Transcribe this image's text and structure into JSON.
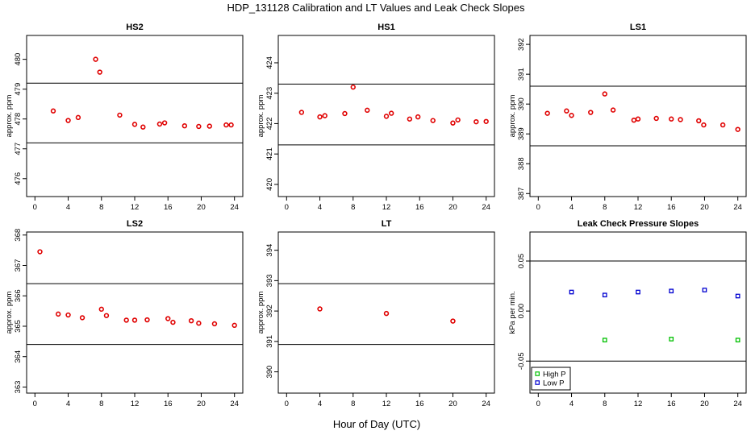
{
  "figure": {
    "title": "HDP_131128  Calibration and LT Values and Leak Check Slopes",
    "xlabel": "Hour of Day (UTC)"
  },
  "colors": {
    "red": "#e00000",
    "green": "#00c000",
    "blue": "#0000d0",
    "axis": "#000000"
  },
  "chart_data": [
    {
      "type": "scatter",
      "title": "HS2",
      "ylabel": "approx. ppm",
      "xlim": [
        -1,
        25
      ],
      "ylim": [
        475.4,
        480.8
      ],
      "xticks": [
        0,
        4,
        8,
        12,
        16,
        20,
        24
      ],
      "yticks": [
        476,
        477,
        478,
        479,
        480
      ],
      "hlines": [
        477.2,
        479.2
      ],
      "series": [
        {
          "color": "red",
          "marker": "o",
          "x": [
            2.2,
            4.0,
            5.2,
            7.3,
            7.8,
            10.2,
            12.0,
            13.0,
            15.0,
            15.6,
            18.0,
            19.7,
            21.0,
            23.0,
            23.6
          ],
          "y": [
            478.27,
            477.95,
            478.05,
            480.0,
            479.57,
            478.13,
            477.82,
            477.73,
            477.83,
            477.87,
            477.77,
            477.75,
            477.76,
            477.8,
            477.8
          ]
        }
      ]
    },
    {
      "type": "scatter",
      "title": "HS1",
      "ylabel": "approx. ppm",
      "xlim": [
        -1,
        25
      ],
      "ylim": [
        419.6,
        424.9
      ],
      "xticks": [
        0,
        4,
        8,
        12,
        16,
        20,
        24
      ],
      "yticks": [
        420,
        421,
        422,
        423,
        424
      ],
      "hlines": [
        421.3,
        423.3
      ],
      "series": [
        {
          "color": "red",
          "marker": "o",
          "x": [
            1.8,
            4.0,
            4.6,
            7.0,
            8.0,
            9.7,
            12.0,
            12.6,
            14.8,
            15.8,
            17.6,
            20.0,
            20.6,
            22.8,
            24.0
          ],
          "y": [
            422.37,
            422.22,
            422.26,
            422.33,
            423.2,
            422.44,
            422.24,
            422.34,
            422.15,
            422.22,
            422.1,
            422.02,
            422.12,
            422.06,
            422.07
          ]
        }
      ]
    },
    {
      "type": "scatter",
      "title": "LS1",
      "ylabel": "approx. ppm",
      "xlim": [
        -1,
        25
      ],
      "ylim": [
        386.9,
        392.3
      ],
      "xticks": [
        0,
        4,
        8,
        12,
        16,
        20,
        24
      ],
      "yticks": [
        387,
        388,
        389,
        390,
        391,
        392
      ],
      "hlines": [
        388.6,
        390.6
      ],
      "series": [
        {
          "color": "red",
          "marker": "o",
          "x": [
            1.1,
            3.4,
            4.0,
            6.3,
            8.0,
            9.0,
            11.5,
            12.0,
            14.2,
            16.0,
            17.1,
            19.3,
            19.9,
            22.2,
            24.0
          ],
          "y": [
            389.69,
            389.77,
            389.62,
            389.72,
            390.34,
            389.8,
            389.46,
            389.5,
            389.52,
            389.5,
            389.48,
            389.44,
            389.3,
            389.3,
            389.15
          ]
        }
      ]
    },
    {
      "type": "scatter",
      "title": "LS2",
      "ylabel": "approx. ppm",
      "xlim": [
        -1,
        25
      ],
      "ylim": [
        362.8,
        368.1
      ],
      "xticks": [
        0,
        4,
        8,
        12,
        16,
        20,
        24
      ],
      "yticks": [
        363,
        364,
        365,
        366,
        367,
        368
      ],
      "hlines": [
        364.4,
        366.4
      ],
      "series": [
        {
          "color": "red",
          "marker": "o",
          "x": [
            0.6,
            2.8,
            4.0,
            5.7,
            8.0,
            8.6,
            11.0,
            12.0,
            13.5,
            16.0,
            16.6,
            18.8,
            19.7,
            21.6,
            24.0
          ],
          "y": [
            367.45,
            365.4,
            365.37,
            365.28,
            365.56,
            365.35,
            365.2,
            365.2,
            365.21,
            365.25,
            365.13,
            365.18,
            365.1,
            365.08,
            365.03
          ]
        }
      ]
    },
    {
      "type": "scatter",
      "title": "LT",
      "ylabel": "approx. ppm",
      "xlim": [
        -1,
        25
      ],
      "ylim": [
        389.3,
        394.6
      ],
      "xticks": [
        0,
        4,
        8,
        12,
        16,
        20,
        24
      ],
      "yticks": [
        390,
        391,
        392,
        393,
        394
      ],
      "hlines": [
        390.9,
        392.9
      ],
      "series": [
        {
          "color": "red",
          "marker": "o",
          "x": [
            4.0,
            12.0,
            20.0
          ],
          "y": [
            392.07,
            391.92,
            391.67
          ]
        }
      ]
    },
    {
      "type": "scatter",
      "title": "Leak Check Pressure Slopes",
      "ylabel": "kPa per min.",
      "xlim": [
        -1,
        25
      ],
      "ylim": [
        -0.082,
        0.079
      ],
      "xticks": [
        0,
        4,
        8,
        12,
        16,
        20,
        24
      ],
      "yticks": [
        -0.05,
        0.0,
        0.05
      ],
      "yticklabels": [
        "-0.05",
        "0.00",
        "0.05"
      ],
      "hlines": [
        -0.05,
        0.05
      ],
      "legend": {
        "position": "bottom-left",
        "entries": [
          "High P",
          "Low P"
        ]
      },
      "series": [
        {
          "name": "High P",
          "color": "green",
          "marker": "s",
          "x": [
            8.0,
            16.0,
            24.0
          ],
          "y": [
            -0.029,
            -0.028,
            -0.029
          ]
        },
        {
          "name": "Low P",
          "color": "blue",
          "marker": "s",
          "x": [
            4.0,
            8.0,
            12.0,
            16.0,
            20.0,
            24.0
          ],
          "y": [
            0.019,
            0.016,
            0.019,
            0.02,
            0.021,
            0.015
          ]
        }
      ]
    }
  ]
}
